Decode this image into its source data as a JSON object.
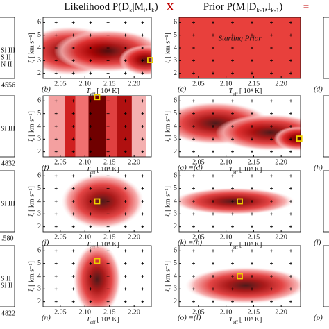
{
  "header": {
    "likelihood": [
      "Likelihood  P(D",
      "k",
      "|M",
      "i",
      ",I",
      "k",
      ")"
    ],
    "times": "X",
    "prior": [
      "Prior  P(M",
      "i",
      "|D",
      "k-1",
      ",I",
      "k-1",
      ")"
    ],
    "equals": "="
  },
  "axes": {
    "xlabel": "T",
    "xlabel_sub": "eff",
    "xlabel_unit": "[ 10⁴ K]",
    "ylabel": "ξ  [ km s⁻¹]",
    "xlim": [
      2.015,
      2.235
    ],
    "ylim": [
      1.6,
      6.4
    ],
    "xticks": [
      2.05,
      {
        "value": 2.1,
        "label": "2.10"
      },
      2.15,
      {
        "value": 2.2,
        "label": "2.20"
      }
    ],
    "yticks": [
      2,
      3,
      4,
      5,
      6
    ]
  },
  "panels": [
    {
      "label": "(b)"
    },
    {
      "label": "(c)",
      "note": "Starting Prior"
    },
    {
      "label": "(f)"
    },
    {
      "label": "(g) =(d)"
    },
    {
      "label": "(j)"
    },
    {
      "label": "(k) =(h)"
    },
    {
      "label": "(n)"
    },
    {
      "label": "(o) =(l)"
    }
  ],
  "left_fragments": [
    [
      "Si III",
      "S II",
      "N II",
      "4556"
    ],
    [
      "Si III",
      "4832"
    ],
    [
      "Si III",
      ".580"
    ],
    [
      "S II",
      "Si II",
      "4822"
    ]
  ],
  "right_labels": [
    "(d)",
    "(h)",
    "(l)",
    "(p)"
  ]
}
